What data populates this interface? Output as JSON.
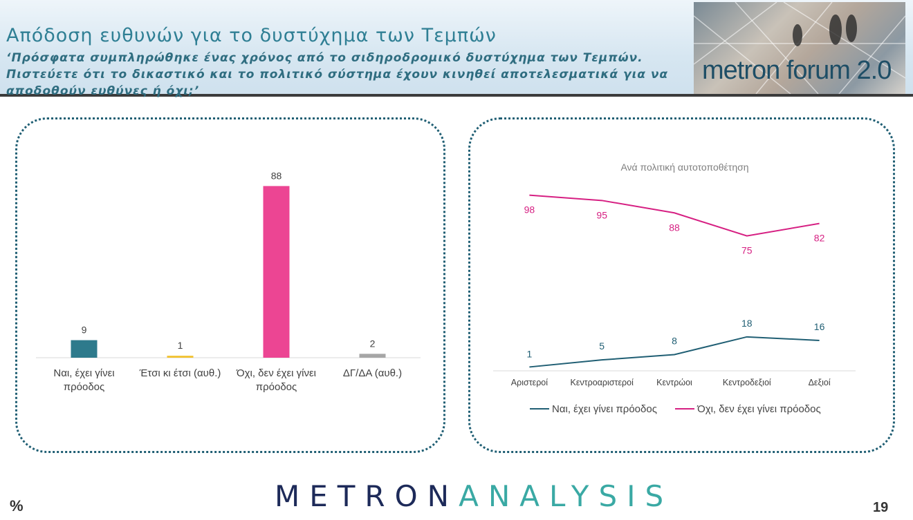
{
  "header": {
    "title": "Απόδοση ευθυνών για το δυστύχημα των Τεμπών",
    "subtitle": "‘Πρόσφατα συμπληρώθηκε ένας χρόνος από το σιδηροδρομικό δυστύχημα των Τεμπών. Πιστεύετε ότι το δικαστικό και το πολιτικό σύστημα έχουν κινηθεί αποτελεσματικά για να αποδοθούν ευθύνες ή όχι;’",
    "logo_text": "metron forum 2.0"
  },
  "footer": {
    "brand_first": "METRON",
    "brand_second": "ANALYSIS",
    "percent": "%",
    "page_number": "19"
  },
  "chart_data": [
    {
      "type": "bar",
      "categories": [
        "Ναι, έχει γίνει πρόοδος",
        "Έτσι κι έτσι (αυθ.)",
        "Όχι, δεν έχει γίνει πρόοδος",
        "ΔΓ/ΔΑ (αυθ.)"
      ],
      "values": [
        9,
        1,
        88,
        2
      ],
      "colors": [
        "#2e7a8c",
        "#f2c12e",
        "#ec4593",
        "#a6a6a6"
      ],
      "ylim": [
        0,
        100
      ]
    },
    {
      "type": "line",
      "title": "Ανά πολιτική αυτοτοποθέτηση",
      "categories": [
        "Αριστεροί",
        "Κεντροαριστεροί",
        "Κεντρώοι",
        "Κεντροδεξιοί",
        "Δεξιοί"
      ],
      "series": [
        {
          "name": "Ναι, έχει γίνει πρόοδος",
          "values": [
            1,
            5,
            8,
            18,
            16
          ],
          "color": "#1f5e73"
        },
        {
          "name": "Όχι, δεν έχει γίνει πρόοδος",
          "values": [
            98,
            95,
            88,
            75,
            82
          ],
          "color": "#d61f82"
        }
      ],
      "ylim": [
        0,
        100
      ],
      "legend": "bottom"
    }
  ]
}
